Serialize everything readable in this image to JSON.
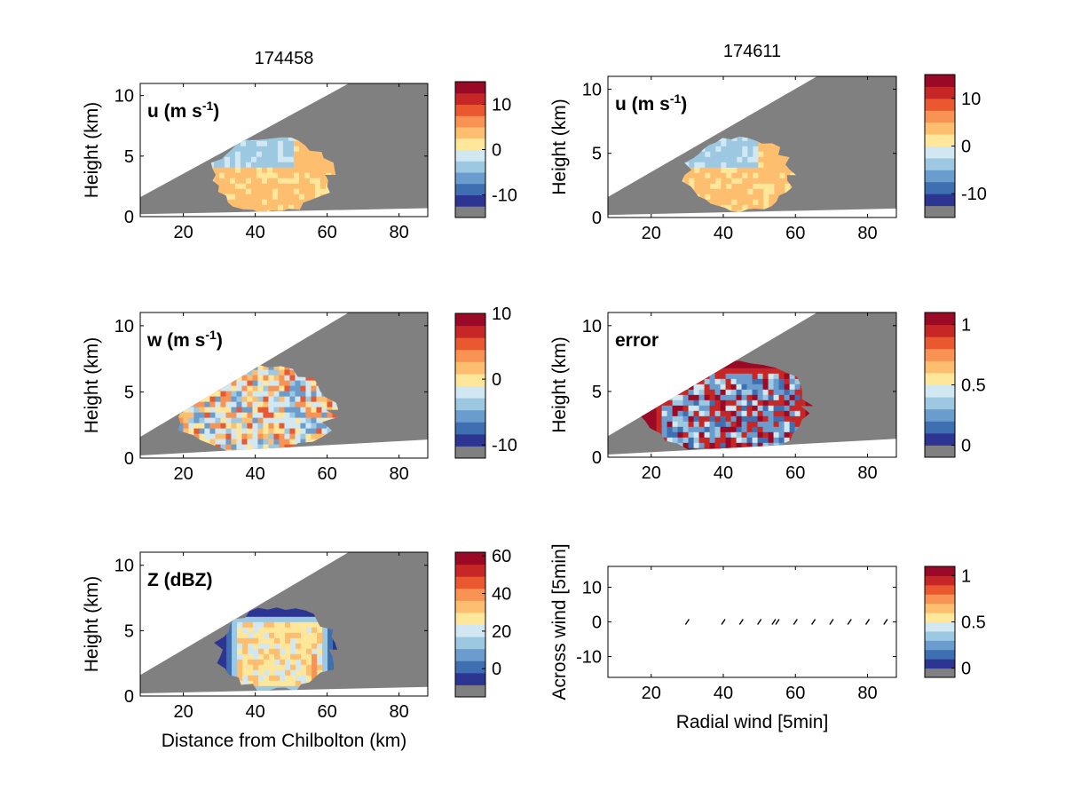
{
  "colors": {
    "background": "#ffffff",
    "mask_gray": "#808080",
    "colormap": [
      "#2c3592",
      "#3e6fb0",
      "#6a9ccd",
      "#9dc8e2",
      "#d1e7f1",
      "#fee79b",
      "#fdbf6f",
      "#f99354",
      "#e9582f",
      "#c62625",
      "#9a0a26"
    ]
  },
  "chart_data": [
    {
      "type": "heatmap",
      "panel": "top-left",
      "title": "174458",
      "in_plot_label": "u (m s",
      "label_exponent": "-1",
      "label_close": ")",
      "ylabel": "Height (km)",
      "xlabel": "",
      "xlim": [
        8,
        88
      ],
      "ylim": [
        0,
        11
      ],
      "xticks": [
        "20",
        "40",
        "60",
        "80"
      ],
      "yticks": [
        "0",
        "5",
        "10"
      ],
      "scan_beam": {
        "x_start": 8,
        "bottom_start": 0.2,
        "bottom_end": 0.7,
        "top_start": 1.6,
        "top_end_x": 66,
        "top_end_y": 11
      },
      "echo": {
        "x_range": [
          27,
          62
        ],
        "top_km": 6.4
      },
      "colorbar": {
        "ticks": [
          "10",
          "0",
          "-10"
        ],
        "tick_values": [
          10,
          0,
          -10
        ],
        "range": [
          -15,
          15
        ]
      }
    },
    {
      "type": "heatmap",
      "panel": "top-right",
      "title": "174611",
      "in_plot_label": "u (m s",
      "label_exponent": "-1",
      "label_close": ")",
      "ylabel": "Height (km)",
      "xlabel": "",
      "xlim": [
        8,
        88
      ],
      "ylim": [
        0,
        11
      ],
      "xticks": [
        "20",
        "40",
        "60",
        "80"
      ],
      "yticks": [
        "0",
        "5",
        "10"
      ],
      "scan_beam": {
        "x_start": 8,
        "bottom_start": 0.2,
        "bottom_end": 0.7,
        "top_start": 1.6,
        "top_end_x": 66,
        "top_end_y": 11
      },
      "echo": {
        "x_range": [
          29,
          60
        ],
        "top_km": 6.1
      },
      "colorbar": {
        "ticks": [
          "10",
          "0",
          "-10"
        ],
        "tick_values": [
          10,
          0,
          -10
        ],
        "range": [
          -15,
          15
        ]
      }
    },
    {
      "type": "heatmap",
      "panel": "middle-left",
      "title": "",
      "in_plot_label": "w (m s",
      "label_exponent": "-1",
      "label_close": ")",
      "ylabel": "Height (km)",
      "xlabel": "",
      "xlim": [
        8,
        88
      ],
      "ylim": [
        0,
        11
      ],
      "xticks": [
        "20",
        "40",
        "60",
        "80"
      ],
      "yticks": [
        "0",
        "5",
        "10"
      ],
      "scan_beam": {
        "x_start": 8,
        "bottom_start": 0.2,
        "bottom_end": 1.4,
        "top_start": 1.6,
        "top_end_x": 66,
        "top_end_y": 11
      },
      "echo": {
        "x_range": [
          17,
          63
        ],
        "top_km": 6.8
      },
      "colorbar": {
        "ticks": [
          "10",
          "0",
          "-10"
        ],
        "tick_values": [
          10,
          0,
          -10
        ],
        "range": [
          -12,
          10
        ]
      }
    },
    {
      "type": "heatmap",
      "panel": "middle-right",
      "title": "",
      "in_plot_label": "error",
      "label_exponent": "",
      "label_close": "",
      "ylabel": "Height (km)",
      "xlabel": "",
      "xlim": [
        8,
        88
      ],
      "ylim": [
        0,
        11
      ],
      "xticks": [
        "20",
        "40",
        "60",
        "80"
      ],
      "yticks": [
        "0",
        "5",
        "10"
      ],
      "scan_beam": {
        "x_start": 8,
        "bottom_start": 0.2,
        "bottom_end": 1.4,
        "top_start": 1.6,
        "top_end_x": 66,
        "top_end_y": 11
      },
      "echo": {
        "x_range": [
          17,
          65
        ],
        "top_km": 7.3
      },
      "colorbar": {
        "ticks": [
          "1",
          "0.5",
          "0"
        ],
        "tick_values": [
          1,
          0.5,
          0
        ],
        "range": [
          -0.1,
          1.1
        ]
      }
    },
    {
      "type": "heatmap",
      "panel": "bottom-left",
      "title": "",
      "in_plot_label": "Z (dBZ)",
      "label_exponent": "",
      "label_close": "",
      "ylabel": "Height (km)",
      "xlabel": "Distance from Chilbolton (km)",
      "xlim": [
        8,
        88
      ],
      "ylim": [
        0,
        11
      ],
      "xticks": [
        "20",
        "40",
        "60",
        "80"
      ],
      "yticks": [
        "0",
        "5",
        "10"
      ],
      "scan_beam": {
        "x_start": 8,
        "bottom_start": 0.2,
        "bottom_end": 0.7,
        "top_start": 1.6,
        "top_end_x": 66,
        "top_end_y": 11
      },
      "echo": {
        "x_range": [
          29,
          63
        ],
        "top_km": 6.6
      },
      "colorbar": {
        "ticks": [
          "60",
          "40",
          "20",
          "0"
        ],
        "tick_values": [
          60,
          40,
          20,
          0
        ],
        "range": [
          -15,
          62
        ]
      }
    },
    {
      "type": "scatter",
      "panel": "bottom-right",
      "title": "",
      "xlabel": "Radial wind [5min]",
      "ylabel": "Across wind [5min]",
      "xlim": [
        8,
        88
      ],
      "ylim": [
        -16,
        16
      ],
      "xticks": [
        "20",
        "40",
        "60",
        "80"
      ],
      "yticks": [
        "10",
        "0",
        "-10"
      ],
      "x": [
        30,
        40,
        45,
        50,
        54,
        55,
        60,
        65,
        70,
        75,
        80,
        85
      ],
      "y": [
        0,
        0,
        0,
        0,
        0,
        0,
        0,
        0,
        0,
        0,
        0,
        0
      ],
      "colorbar": {
        "ticks": [
          "1",
          "0.5",
          "0"
        ],
        "tick_values": [
          1,
          0.5,
          0
        ],
        "range": [
          -0.1,
          1.1
        ]
      }
    }
  ]
}
